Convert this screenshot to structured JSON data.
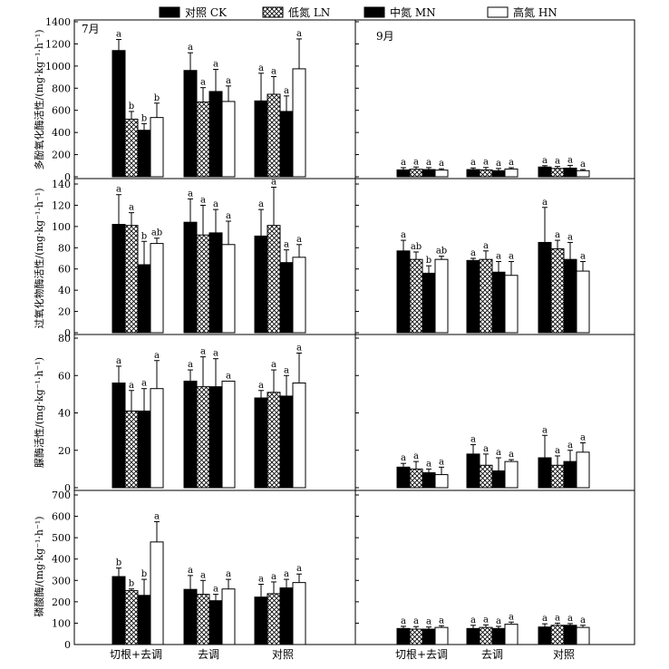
{
  "chart_data": {
    "type": "bar",
    "title": "",
    "months": [
      "7月",
      "9月"
    ],
    "categories": [
      "切根+去调",
      "去调",
      "对照"
    ],
    "legend": [
      {
        "key": "CK",
        "label": "对照 CK",
        "fill": "black"
      },
      {
        "key": "LN",
        "label": "低氮 LN",
        "fill": "cross"
      },
      {
        "key": "MN",
        "label": "中氮 MN",
        "fill": "black"
      },
      {
        "key": "HN",
        "label": "高氮 HN",
        "fill": "white"
      }
    ],
    "panels": [
      {
        "ylabel": "多酚氧化酶活性/(mg·kg⁻¹·h⁻¹)",
        "ylim": [
          0,
          1400
        ],
        "ticks": [
          0,
          200,
          400,
          600,
          800,
          1000,
          1200,
          1400
        ],
        "july": {
          "values": [
            [
              1140,
              520,
              420,
              535
            ],
            [
              960,
              675,
              770,
              680
            ],
            [
              685,
              745,
              590,
              975
            ]
          ],
          "errors": [
            [
              100,
              70,
              60,
              130
            ],
            [
              160,
              130,
              200,
              140
            ],
            [
              250,
              160,
              140,
              270
            ]
          ],
          "letters": [
            [
              "a",
              "b",
              "b",
              "b"
            ],
            [
              "a",
              "a",
              "a",
              "a"
            ],
            [
              "a",
              "a",
              "a",
              "a"
            ]
          ]
        },
        "sept": {
          "values": [
            [
              62,
              68,
              65,
              60
            ],
            [
              65,
              62,
              55,
              70
            ],
            [
              88,
              75,
              78,
              55
            ]
          ],
          "errors": [
            [
              20,
              20,
              18,
              12
            ],
            [
              15,
              22,
              20,
              12
            ],
            [
              12,
              18,
              25,
              10
            ]
          ],
          "letters": [
            [
              "a",
              "a",
              "a",
              "a"
            ],
            [
              "a",
              "a",
              "a",
              "a"
            ],
            [
              "a",
              "a",
              "a",
              "a"
            ]
          ]
        }
      },
      {
        "ylabel": "过氧化物酶活性/(mg·kg⁻¹·h⁻¹)",
        "ylim": [
          0,
          140
        ],
        "ticks": [
          0,
          20,
          40,
          60,
          80,
          100,
          120,
          140
        ],
        "july": {
          "values": [
            [
              102,
              101,
              64,
              84
            ],
            [
              104,
              92,
              94,
              83
            ],
            [
              91,
              101,
              66,
              71
            ]
          ],
          "errors": [
            [
              28,
              12,
              22,
              5
            ],
            [
              22,
              28,
              22,
              22
            ],
            [
              25,
              36,
              12,
              12
            ]
          ],
          "letters": [
            [
              "a",
              "a",
              "b",
              "ab"
            ],
            [
              "a",
              "a",
              "a",
              "a"
            ],
            [
              "a",
              "a",
              "a",
              "a"
            ]
          ]
        },
        "sept": {
          "values": [
            [
              77,
              69,
              56,
              69
            ],
            [
              68,
              69,
              57,
              54
            ],
            [
              85,
              79,
              69,
              58
            ]
          ],
          "errors": [
            [
              10,
              7,
              7,
              3
            ],
            [
              2,
              8,
              10,
              13
            ],
            [
              33,
              8,
              16,
              9
            ]
          ],
          "letters": [
            [
              "a",
              "ab",
              "b",
              "ab"
            ],
            [
              "a",
              "a",
              "a",
              "a"
            ],
            [
              "a",
              "a",
              "a",
              "a"
            ]
          ]
        }
      },
      {
        "ylabel": "脲酶活性/(mg·kg⁻¹·h⁻¹)",
        "ylim": [
          0,
          80
        ],
        "ticks": [
          0,
          20,
          40,
          60,
          80
        ],
        "july": {
          "values": [
            [
              56,
              41,
              41,
              53
            ],
            [
              57,
              54,
              54,
              57
            ],
            [
              48,
              51,
              49,
              56
            ]
          ],
          "errors": [
            [
              9,
              11,
              12,
              15
            ],
            [
              6,
              16,
              15,
              0
            ],
            [
              4,
              12,
              11,
              16
            ]
          ],
          "letters": [
            [
              "a",
              "a",
              "a",
              "a"
            ],
            [
              "a",
              "a",
              "a",
              "a"
            ],
            [
              "a",
              "a",
              "a",
              "a"
            ]
          ]
        },
        "sept": {
          "values": [
            [
              11,
              10,
              8,
              7
            ],
            [
              18,
              12,
              9,
              14
            ],
            [
              16,
              12,
              14,
              19
            ]
          ],
          "errors": [
            [
              2,
              4,
              2,
              4
            ],
            [
              5,
              6,
              7,
              1
            ],
            [
              12,
              5,
              6,
              5
            ]
          ],
          "letters": [
            [
              "a",
              "a",
              "a",
              "a"
            ],
            [
              "a",
              "a",
              "a",
              "a"
            ],
            [
              "a",
              "a",
              "a",
              "a"
            ]
          ]
        }
      },
      {
        "ylabel": "磷酸酶/(mg·kg⁻¹·h⁻¹)",
        "ylim": [
          0,
          700
        ],
        "ticks": [
          0,
          100,
          200,
          300,
          400,
          500,
          600,
          700
        ],
        "july": {
          "values": [
            [
              318,
              252,
              230,
              480
            ],
            [
              258,
              235,
              205,
              260
            ],
            [
              222,
              238,
              265,
              290
            ]
          ],
          "errors": [
            [
              40,
              8,
              75,
              95
            ],
            [
              65,
              65,
              30,
              45
            ],
            [
              60,
              55,
              40,
              40
            ]
          ],
          "letters": [
            [
              "b",
              "b",
              "b",
              "a"
            ],
            [
              "a",
              "a",
              "a",
              "a"
            ],
            [
              "a",
              "a",
              "a",
              "a"
            ]
          ]
        },
        "sept": {
          "values": [
            [
              75,
              72,
              72,
              80
            ],
            [
              75,
              80,
              75,
              95
            ],
            [
              82,
              90,
              90,
              80
            ]
          ],
          "errors": [
            [
              10,
              12,
              10,
              8
            ],
            [
              15,
              12,
              10,
              10
            ],
            [
              15,
              10,
              8,
              10
            ]
          ],
          "letters": [
            [
              "a",
              "a",
              "a",
              "a"
            ],
            [
              "a",
              "a",
              "a",
              "a"
            ],
            [
              "a",
              "a",
              "a",
              "a"
            ]
          ]
        }
      }
    ]
  }
}
